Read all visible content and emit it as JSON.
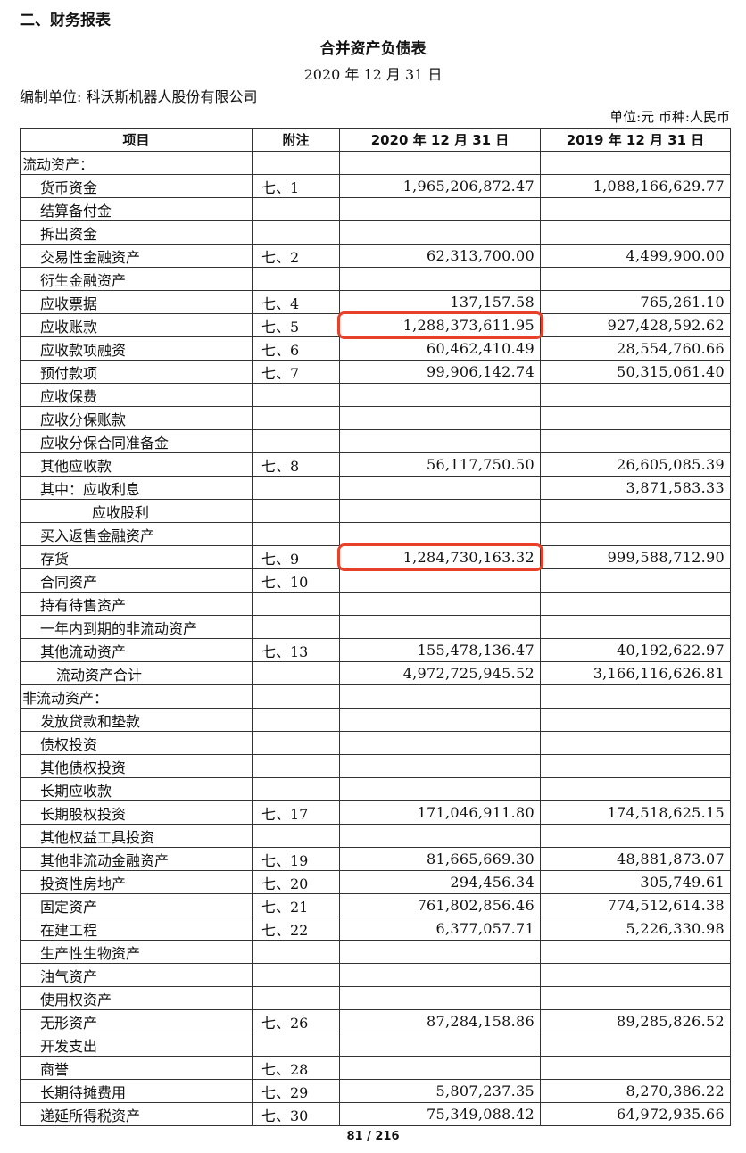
{
  "section_heading": "二、财务报表",
  "title": "合并资产负债表",
  "report_date": "2020 年 12 月 31 日",
  "company": "编制单位: 科沃斯机器人股份有限公司",
  "unit_currency": "单位:元   币种:人民币",
  "highlight_color": "#e8412a",
  "columns": [
    "项目",
    "附注",
    "2020 年 12 月 31 日",
    "2019 年 12 月 31 日"
  ],
  "rows": [
    {
      "item": "流动资产：",
      "level": 0,
      "note": "",
      "y2020": "",
      "y2019": ""
    },
    {
      "item": "货币资金",
      "level": 1,
      "note": "七、1",
      "y2020": "1,965,206,872.47",
      "y2019": "1,088,166,629.77"
    },
    {
      "item": "结算备付金",
      "level": 1,
      "note": "",
      "y2020": "",
      "y2019": ""
    },
    {
      "item": "拆出资金",
      "level": 1,
      "note": "",
      "y2020": "",
      "y2019": ""
    },
    {
      "item": "交易性金融资产",
      "level": 1,
      "note": "七、2",
      "y2020": "62,313,700.00",
      "y2019": "4,499,900.00"
    },
    {
      "item": "衍生金融资产",
      "level": 1,
      "note": "",
      "y2020": "",
      "y2019": ""
    },
    {
      "item": "应收票据",
      "level": 1,
      "note": "七、4",
      "y2020": "137,157.58",
      "y2019": "765,261.10"
    },
    {
      "item": "应收账款",
      "level": 1,
      "note": "七、5",
      "y2020": "1,288,373,611.95",
      "y2019": "927,428,592.62",
      "highlighted": true
    },
    {
      "item": "应收款项融资",
      "level": 1,
      "note": "七、6",
      "y2020": "60,462,410.49",
      "y2019": "28,554,760.66"
    },
    {
      "item": "预付款项",
      "level": 1,
      "note": "七、7",
      "y2020": "99,906,142.74",
      "y2019": "50,315,061.40"
    },
    {
      "item": "应收保费",
      "level": 1,
      "note": "",
      "y2020": "",
      "y2019": ""
    },
    {
      "item": "应收分保账款",
      "level": 1,
      "note": "",
      "y2020": "",
      "y2019": ""
    },
    {
      "item": "应收分保合同准备金",
      "level": 1,
      "note": "",
      "y2020": "",
      "y2019": ""
    },
    {
      "item": "其他应收款",
      "level": 1,
      "note": "七、8",
      "y2020": "56,117,750.50",
      "y2019": "26,605,085.39"
    },
    {
      "item": "其中：应收利息",
      "level": 1,
      "note": "",
      "y2020": "",
      "y2019": "3,871,583.33"
    },
    {
      "item": "应收股利",
      "level": 3,
      "note": "",
      "y2020": "",
      "y2019": ""
    },
    {
      "item": "买入返售金融资产",
      "level": 1,
      "note": "",
      "y2020": "",
      "y2019": ""
    },
    {
      "item": "存货",
      "level": 1,
      "note": "七、9",
      "y2020": "1,284,730,163.32",
      "y2019": "999,588,712.90",
      "highlighted": true
    },
    {
      "item": "合同资产",
      "level": 1,
      "note": "七、10",
      "y2020": "",
      "y2019": ""
    },
    {
      "item": "持有待售资产",
      "level": 1,
      "note": "",
      "y2020": "",
      "y2019": ""
    },
    {
      "item": "一年内到期的非流动资产",
      "level": 1,
      "note": "",
      "y2020": "",
      "y2019": ""
    },
    {
      "item": "其他流动资产",
      "level": 1,
      "note": "七、13",
      "y2020": "155,478,136.47",
      "y2019": "40,192,622.97"
    },
    {
      "item": "流动资产合计",
      "level": 2,
      "note": "",
      "y2020": "4,972,725,945.52",
      "y2019": "3,166,116,626.81"
    },
    {
      "item": "非流动资产：",
      "level": 0,
      "note": "",
      "y2020": "",
      "y2019": ""
    },
    {
      "item": "发放贷款和垫款",
      "level": 1,
      "note": "",
      "y2020": "",
      "y2019": ""
    },
    {
      "item": "债权投资",
      "level": 1,
      "note": "",
      "y2020": "",
      "y2019": ""
    },
    {
      "item": "其他债权投资",
      "level": 1,
      "note": "",
      "y2020": "",
      "y2019": ""
    },
    {
      "item": "长期应收款",
      "level": 1,
      "note": "",
      "y2020": "",
      "y2019": ""
    },
    {
      "item": "长期股权投资",
      "level": 1,
      "note": "七、17",
      "y2020": "171,046,911.80",
      "y2019": "174,518,625.15"
    },
    {
      "item": "其他权益工具投资",
      "level": 1,
      "note": "",
      "y2020": "",
      "y2019": ""
    },
    {
      "item": "其他非流动金融资产",
      "level": 1,
      "note": "七、19",
      "y2020": "81,665,669.30",
      "y2019": "48,881,873.07"
    },
    {
      "item": "投资性房地产",
      "level": 1,
      "note": "七、20",
      "y2020": "294,456.34",
      "y2019": "305,749.61"
    },
    {
      "item": "固定资产",
      "level": 1,
      "note": "七、21",
      "y2020": "761,802,856.46",
      "y2019": "774,512,614.38"
    },
    {
      "item": "在建工程",
      "level": 1,
      "note": "七、22",
      "y2020": "6,377,057.71",
      "y2019": "5,226,330.98"
    },
    {
      "item": "生产性生物资产",
      "level": 1,
      "note": "",
      "y2020": "",
      "y2019": ""
    },
    {
      "item": "油气资产",
      "level": 1,
      "note": "",
      "y2020": "",
      "y2019": ""
    },
    {
      "item": "使用权资产",
      "level": 1,
      "note": "",
      "y2020": "",
      "y2019": ""
    },
    {
      "item": "无形资产",
      "level": 1,
      "note": "七、26",
      "y2020": "87,284,158.86",
      "y2019": "89,285,826.52"
    },
    {
      "item": "开发支出",
      "level": 1,
      "note": "",
      "y2020": "",
      "y2019": ""
    },
    {
      "item": "商誉",
      "level": 1,
      "note": "七、28",
      "y2020": "",
      "y2019": ""
    },
    {
      "item": "长期待摊费用",
      "level": 1,
      "note": "七、29",
      "y2020": "5,807,237.35",
      "y2019": "8,270,386.22"
    },
    {
      "item": "递延所得税资产",
      "level": 1,
      "note": "七、30",
      "y2020": "75,349,088.42",
      "y2019": "64,972,935.66"
    }
  ],
  "footer": "81 / 216"
}
